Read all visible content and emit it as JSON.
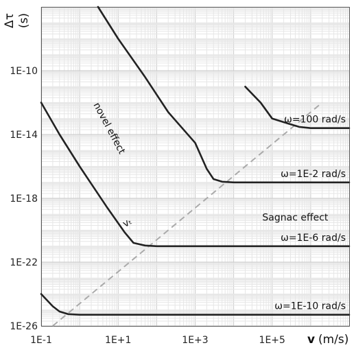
{
  "chart_data": {
    "type": "line",
    "x_scale": "log",
    "y_scale": "log",
    "xlim": [
      0.1,
      10000000
    ],
    "ylim": [
      1e-26,
      1e-06
    ],
    "grid": true,
    "xlabel": {
      "symbol": "v",
      "unit": "(m/s)"
    },
    "ylabel": {
      "symbol": "Δτ",
      "unit": "(s)"
    },
    "x_ticks": [
      {
        "value": 0.1,
        "label": "1E-1"
      },
      {
        "value": 10,
        "label": "1E+1"
      },
      {
        "value": 1000,
        "label": "1E+3"
      },
      {
        "value": 100000,
        "label": "1E+5"
      }
    ],
    "y_ticks": [
      {
        "value": 1e-10,
        "label": "1E-10"
      },
      {
        "value": 1e-14,
        "label": "1E-14"
      },
      {
        "value": 1e-18,
        "label": "1E-18"
      },
      {
        "value": 1e-22,
        "label": "1E-22"
      },
      {
        "value": 1e-26,
        "label": "1E-26"
      }
    ],
    "series": [
      {
        "name": "ω=100 rad/s",
        "color": "#222222",
        "points": [
          [
            20000,
            1e-11
          ],
          [
            50000,
            1e-12
          ],
          [
            100000,
            1e-13
          ],
          [
            250000,
            5e-14
          ],
          [
            500000,
            3e-14
          ],
          [
            1000000,
            2.5e-14
          ],
          [
            10000000,
            2.5e-14
          ]
        ]
      },
      {
        "name": "ω=1E-2 rad/s",
        "color": "#222222",
        "points": [
          [
            3,
            1e-06
          ],
          [
            10,
            1e-08
          ],
          [
            50,
            4e-11
          ],
          [
            200,
            2.5e-13
          ],
          [
            1000,
            3e-15
          ],
          [
            2000,
            7e-17
          ],
          [
            3000,
            1.6e-17
          ],
          [
            5000,
            1.1e-17
          ],
          [
            10000,
            1e-17
          ],
          [
            10000000,
            1e-17
          ]
        ]
      },
      {
        "name": "ω=1E-6 rad/s",
        "color": "#222222",
        "points": [
          [
            0.1,
            1e-12
          ],
          [
            0.3,
            1e-14
          ],
          [
            1,
            1e-16
          ],
          [
            5,
            3e-19
          ],
          [
            15,
            7e-21
          ],
          [
            25,
            1.6e-21
          ],
          [
            50,
            1.1e-21
          ],
          [
            100,
            1e-21
          ],
          [
            10000000,
            1e-21
          ]
        ]
      },
      {
        "name": "ω=1E-10 rad/s",
        "color": "#222222",
        "points": [
          [
            0.1,
            1e-24
          ],
          [
            0.2,
            1.7e-25
          ],
          [
            0.3,
            8e-26
          ],
          [
            0.5,
            5.5e-26
          ],
          [
            1,
            5e-26
          ],
          [
            10000000,
            5e-26
          ]
        ]
      }
    ],
    "reference_line": {
      "label": "vₜ",
      "color": "#aaaaaa",
      "points": [
        [
          0.2,
          1e-26
        ],
        [
          2000000,
          1e-12
        ]
      ]
    },
    "annotations": [
      {
        "text": "novel effect"
      },
      {
        "text": "Sagnac effect"
      }
    ]
  }
}
